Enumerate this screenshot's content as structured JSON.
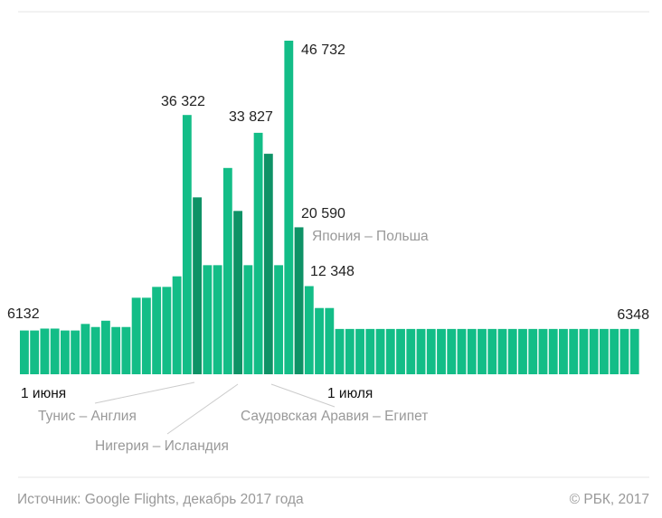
{
  "chart_data": {
    "type": "bar",
    "title": "",
    "xlabel": "",
    "ylabel": "",
    "ylim": [
      0,
      46732
    ],
    "grid": false,
    "x_start_label": "1 июня",
    "x_mid_label": "1 июля",
    "values": [
      6132,
      6132,
      6400,
      6400,
      6132,
      6132,
      7050,
      6620,
      7500,
      6620,
      6620,
      10720,
      10720,
      12240,
      12240,
      13720,
      36322,
      24780,
      15280,
      15280,
      28900,
      22880,
      15280,
      33827,
      30890,
      15280,
      46732,
      20590,
      12348,
      9280,
      9280,
      6348,
      6348,
      6348,
      6348,
      6348,
      6348,
      6348,
      6348,
      6348,
      6348,
      6348,
      6348,
      6348,
      6348,
      6348,
      6348,
      6348,
      6348,
      6348,
      6348,
      6348,
      6348,
      6348,
      6348,
      6348,
      6348,
      6348,
      6348,
      6348,
      6348
    ],
    "highlighted_days": [
      18,
      22,
      25,
      28
    ],
    "value_labels": [
      {
        "day": 1,
        "text": "6132"
      },
      {
        "day": 17,
        "text": "36 322"
      },
      {
        "day": 24,
        "text": "33 827"
      },
      {
        "day": 27,
        "text": "46 732"
      },
      {
        "day": 28,
        "text": "20 590"
      },
      {
        "day": 29,
        "text": "12 348"
      },
      {
        "day": 61,
        "text": "6348"
      }
    ],
    "annotations": [
      {
        "day": 18,
        "text": "Тунис – Англия"
      },
      {
        "day": 22,
        "text": "Нигерия – Исландия"
      },
      {
        "day": 25,
        "text": "Саудовская Аравия – Египет"
      },
      {
        "day": 28,
        "text": "Япония – Польша"
      }
    ]
  },
  "colors": {
    "bar": "#13bd87",
    "highlight": "#0e9266",
    "annotation": "#999999"
  },
  "footer": {
    "source": "Источник: Google Flights, декабрь 2017 года",
    "copyright": "© РБК, 2017"
  }
}
